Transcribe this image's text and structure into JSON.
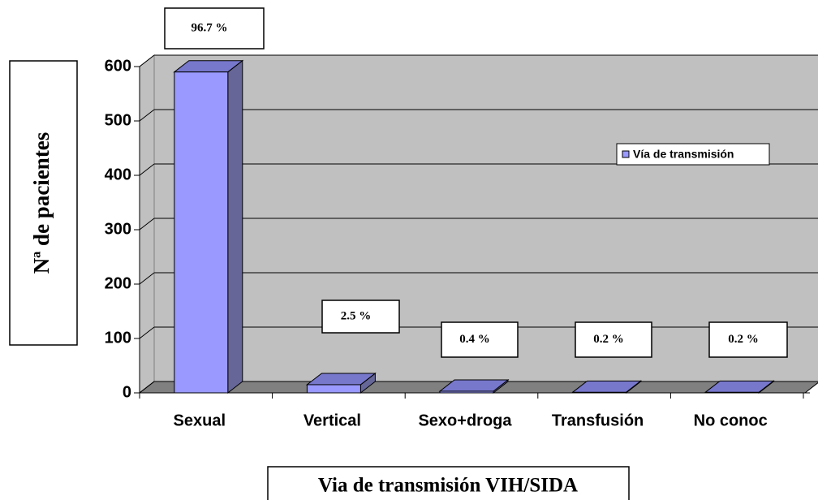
{
  "chart_data": {
    "type": "bar",
    "y_axis_title": "Nª de pacientes",
    "x_axis_title": "Via de transmisión VIH/SIDA",
    "categories": [
      "Sexual",
      "Vertical",
      "Sexo+droga",
      "Transfusión",
      "No conoc"
    ],
    "series": [
      {
        "name": "Vía de transmisión",
        "color": "#9999ff",
        "values": [
          590,
          15,
          3,
          1,
          1
        ]
      }
    ],
    "annotations": [
      "96.7 %",
      "2.5 %",
      "0.4 %",
      "0.2  %",
      "0.2 %"
    ],
    "ylim": [
      0,
      600
    ],
    "yticks": [
      0,
      100,
      200,
      300,
      400,
      500,
      600
    ],
    "grid": true,
    "legend": "right"
  }
}
